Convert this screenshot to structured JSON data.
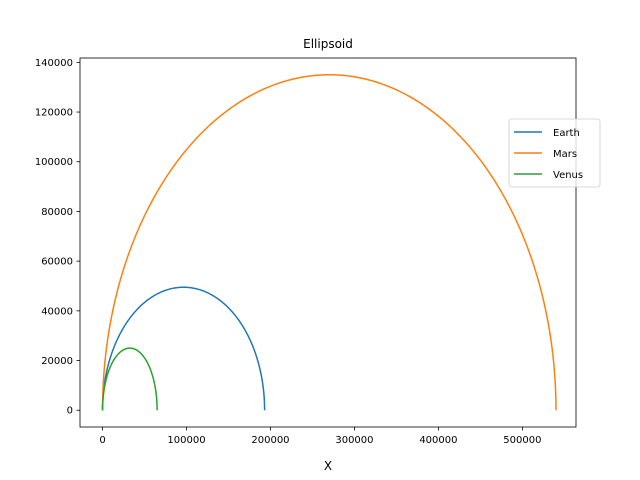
{
  "chart_data": {
    "type": "line",
    "title": "Ellipsoid",
    "xlabel": "X",
    "ylabel": "",
    "xlim": [
      -26850,
      563850
    ],
    "ylim": [
      -6750,
      141750
    ],
    "xticks": [
      0,
      100000,
      200000,
      300000,
      400000,
      500000
    ],
    "yticks": [
      0,
      20000,
      40000,
      60000,
      80000,
      100000,
      120000,
      140000
    ],
    "grid": false,
    "legend_placement": "right",
    "series": [
      {
        "name": "Earth",
        "color": "#1f77b4",
        "center_x": 96500,
        "semi_major": 96500,
        "height": 49500
      },
      {
        "name": "Mars",
        "color": "#ff7f0e",
        "center_x": 270000,
        "semi_major": 270000,
        "height": 135000
      },
      {
        "name": "Venus",
        "color": "#2ca02c",
        "center_x": 32500,
        "semi_major": 32500,
        "height": 25000
      }
    ]
  }
}
